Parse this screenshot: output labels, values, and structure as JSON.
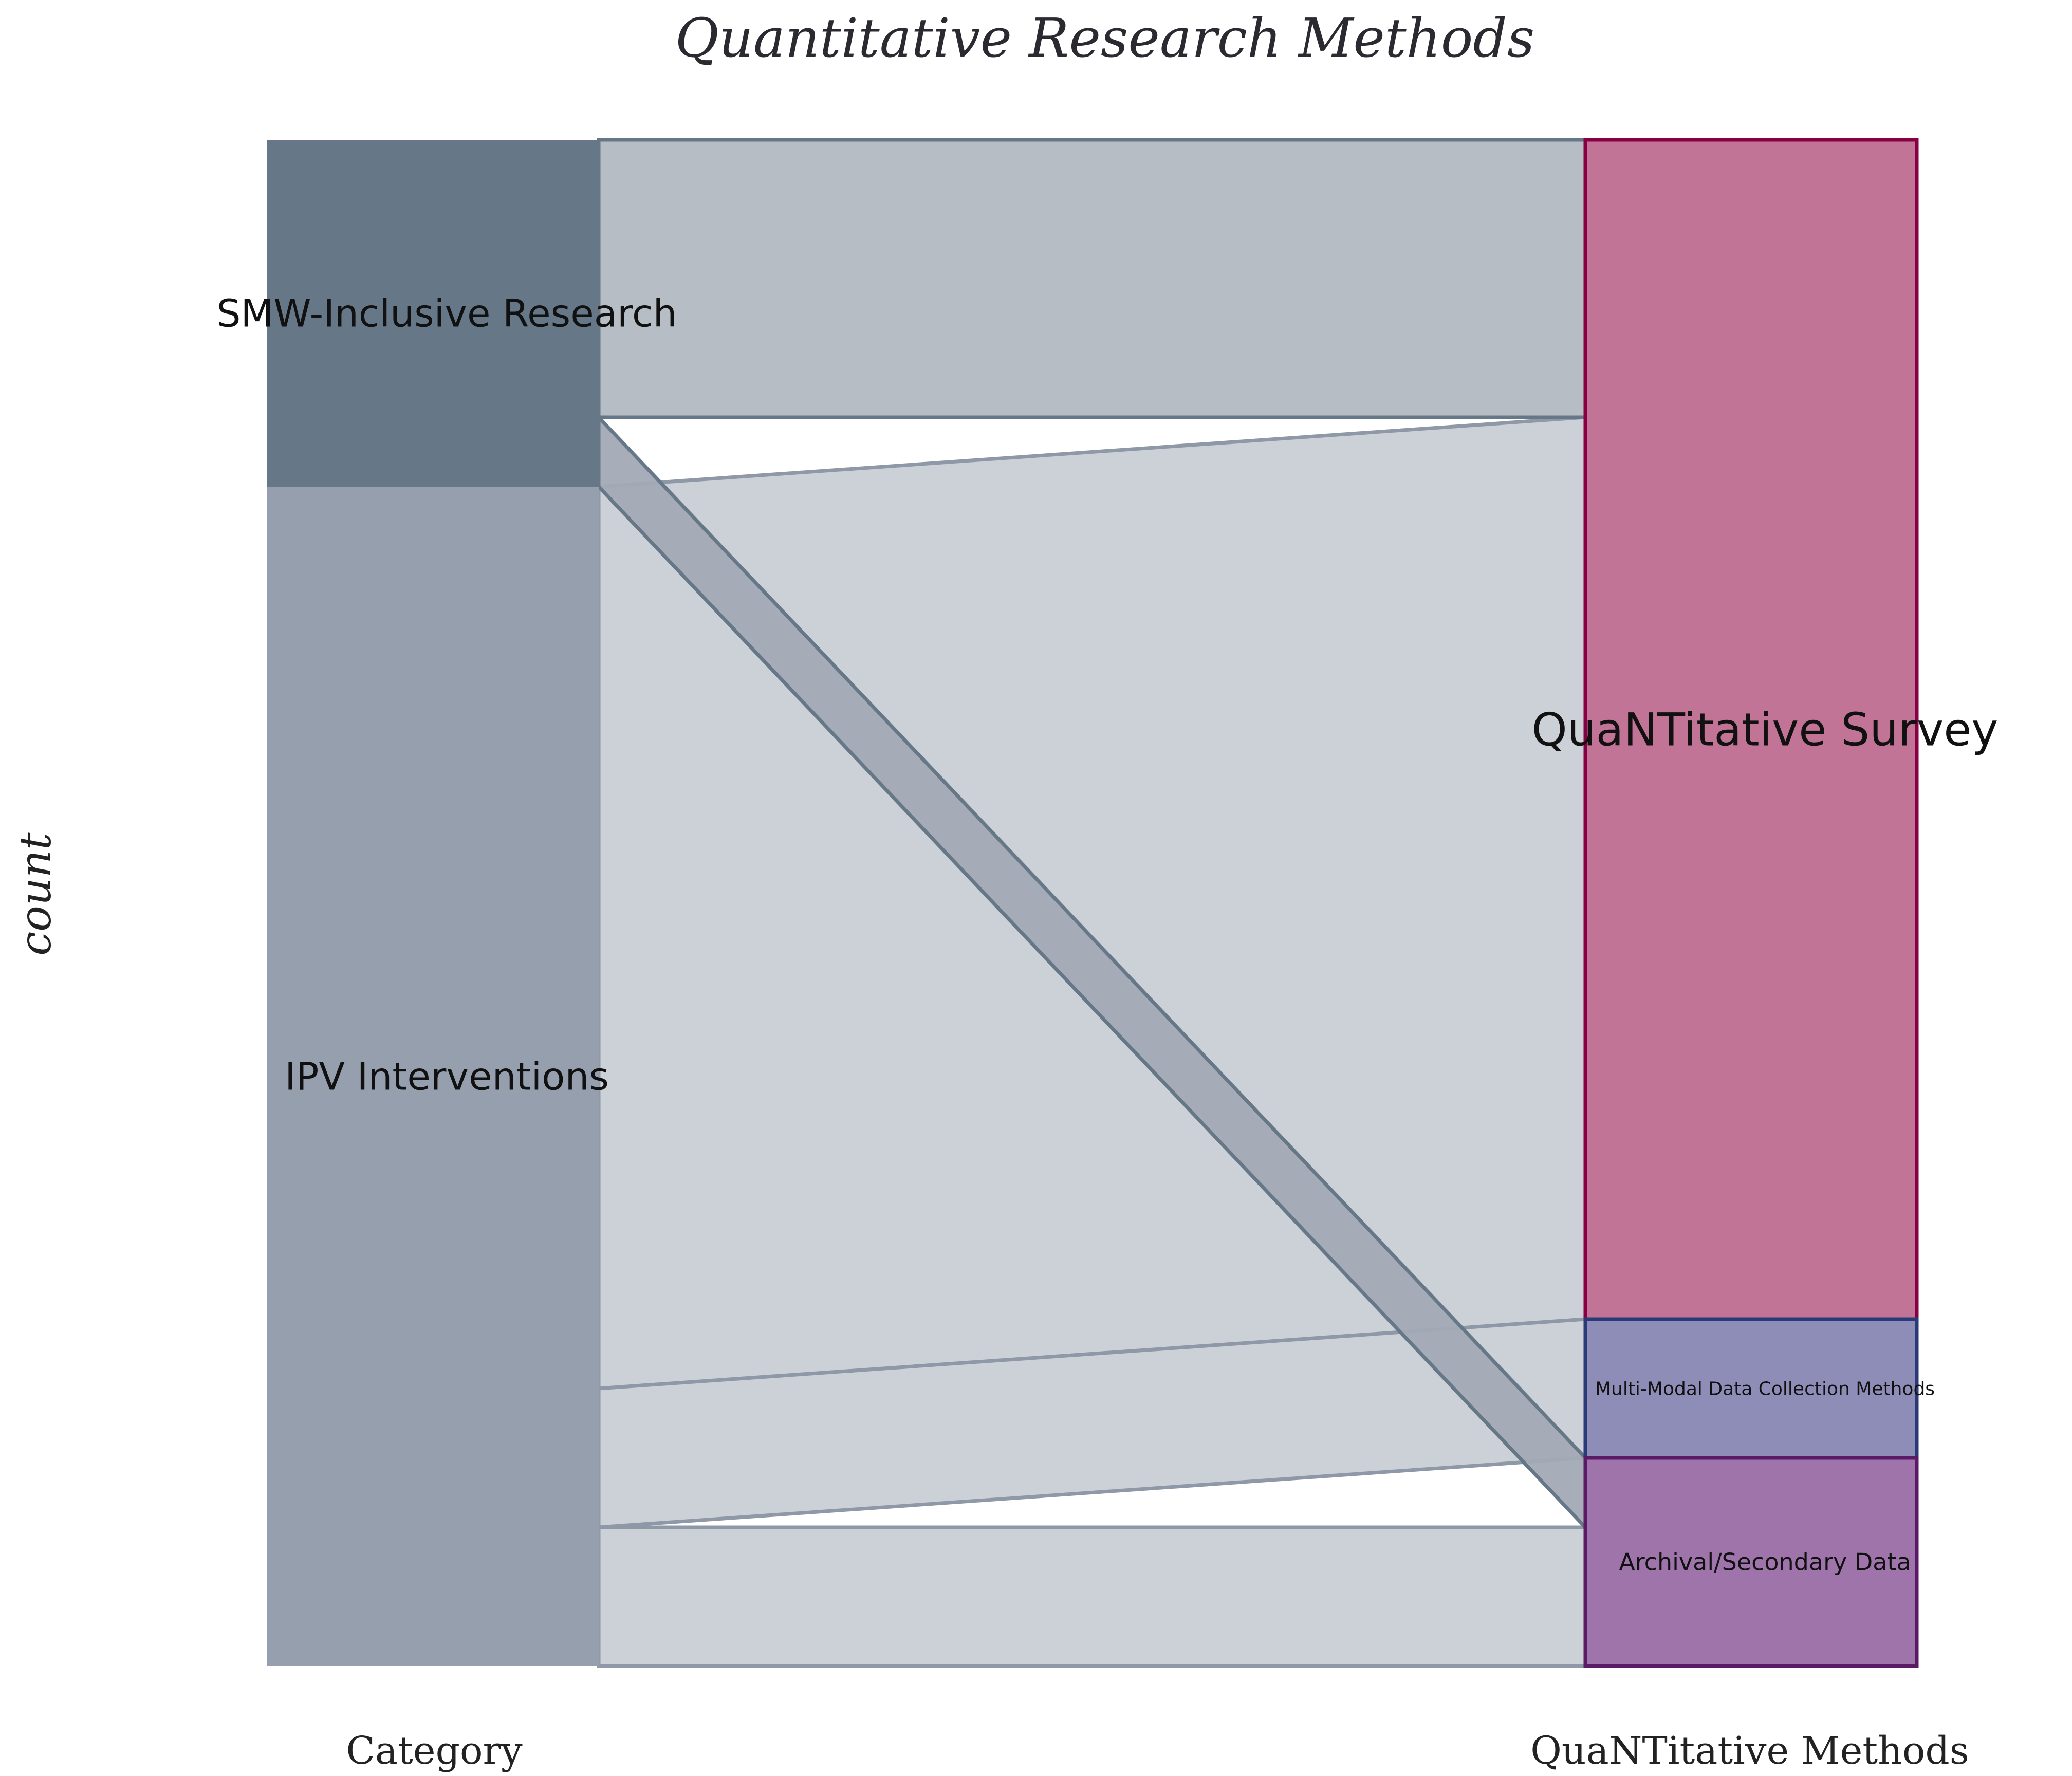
{
  "chart_data": {
    "type": "alluvial",
    "title": "Quantitative Research Methods",
    "ylabel": "count",
    "axes": [
      "Category",
      "QuaNTitative Methods"
    ],
    "left_nodes": [
      {
        "name": "SMW-Inclusive Research",
        "value": 5,
        "color": "#667788"
      },
      {
        "name": "IPV Interventions",
        "value": 17,
        "color": "#969FAD"
      }
    ],
    "right_nodes": [
      {
        "name": "QuaNTitative Survey",
        "value": 17,
        "fill": "#C27497",
        "stroke": "#880044"
      },
      {
        "name": "Multi-Modal Data Collection Methods",
        "value": 2,
        "fill": "#8E8DB8",
        "stroke": "#2A3A77"
      },
      {
        "name": "Archival/Secondary Data",
        "value": 3,
        "fill": "#9E74AA",
        "stroke": "#5A1A66"
      }
    ],
    "flows": [
      {
        "source": "SMW-Inclusive Research",
        "target": "QuaNTitative Survey",
        "value": 4
      },
      {
        "source": "SMW-Inclusive Research",
        "target": "Archival/Secondary Data",
        "value": 1
      },
      {
        "source": "IPV Interventions",
        "target": "QuaNTitative Survey",
        "value": 13
      },
      {
        "source": "IPV Interventions",
        "target": "Multi-Modal Data Collection Methods",
        "value": 2
      },
      {
        "source": "IPV Interventions",
        "target": "Archival/Secondary Data",
        "value": 2
      }
    ],
    "label_sizes": {
      "SMW-Inclusive Research": "large",
      "IPV Interventions": "large",
      "QuaNTitative Survey": "xlarge",
      "Multi-Modal Data Collection Methods": "small",
      "Archival/Secondary Data": "medium"
    }
  }
}
